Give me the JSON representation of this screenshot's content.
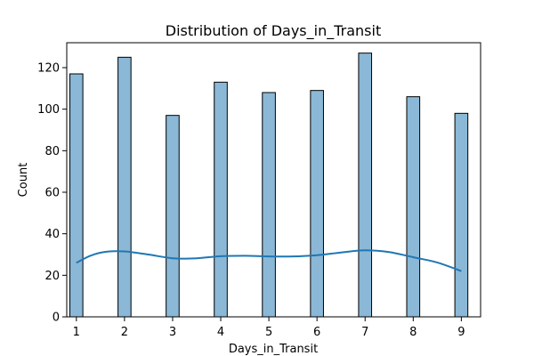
{
  "chart_data": {
    "type": "bar",
    "title": "Distribution of Days_in_Transit",
    "xlabel": "Days_in_Transit",
    "ylabel": "Count",
    "x": [
      1,
      2,
      3,
      4,
      5,
      6,
      7,
      8,
      9
    ],
    "values": [
      117,
      125,
      97,
      113,
      108,
      109,
      127,
      106,
      98
    ],
    "xlim": [
      0.8,
      9.4
    ],
    "ylim": [
      0,
      132
    ],
    "xticks": [
      1,
      2,
      3,
      4,
      5,
      6,
      7,
      8,
      9
    ],
    "yticks": [
      0,
      20,
      40,
      60,
      80,
      100,
      120
    ],
    "kde": {
      "x": [
        1,
        1.3,
        1.6,
        2,
        2.5,
        3,
        3.5,
        4,
        4.5,
        5,
        5.5,
        6,
        6.5,
        7,
        7.5,
        8,
        8.5,
        9
      ],
      "y": [
        26,
        29.5,
        31.3,
        31.5,
        30,
        28.2,
        28.2,
        29.2,
        29.4,
        29.1,
        29.1,
        29.7,
        31,
        32,
        31.2,
        28.7,
        26.2,
        22
      ]
    },
    "grid": false,
    "colors": {
      "bar_fill": "#8bb8d6",
      "bar_edge": "#000000",
      "kde_line": "#1f77b4"
    }
  }
}
